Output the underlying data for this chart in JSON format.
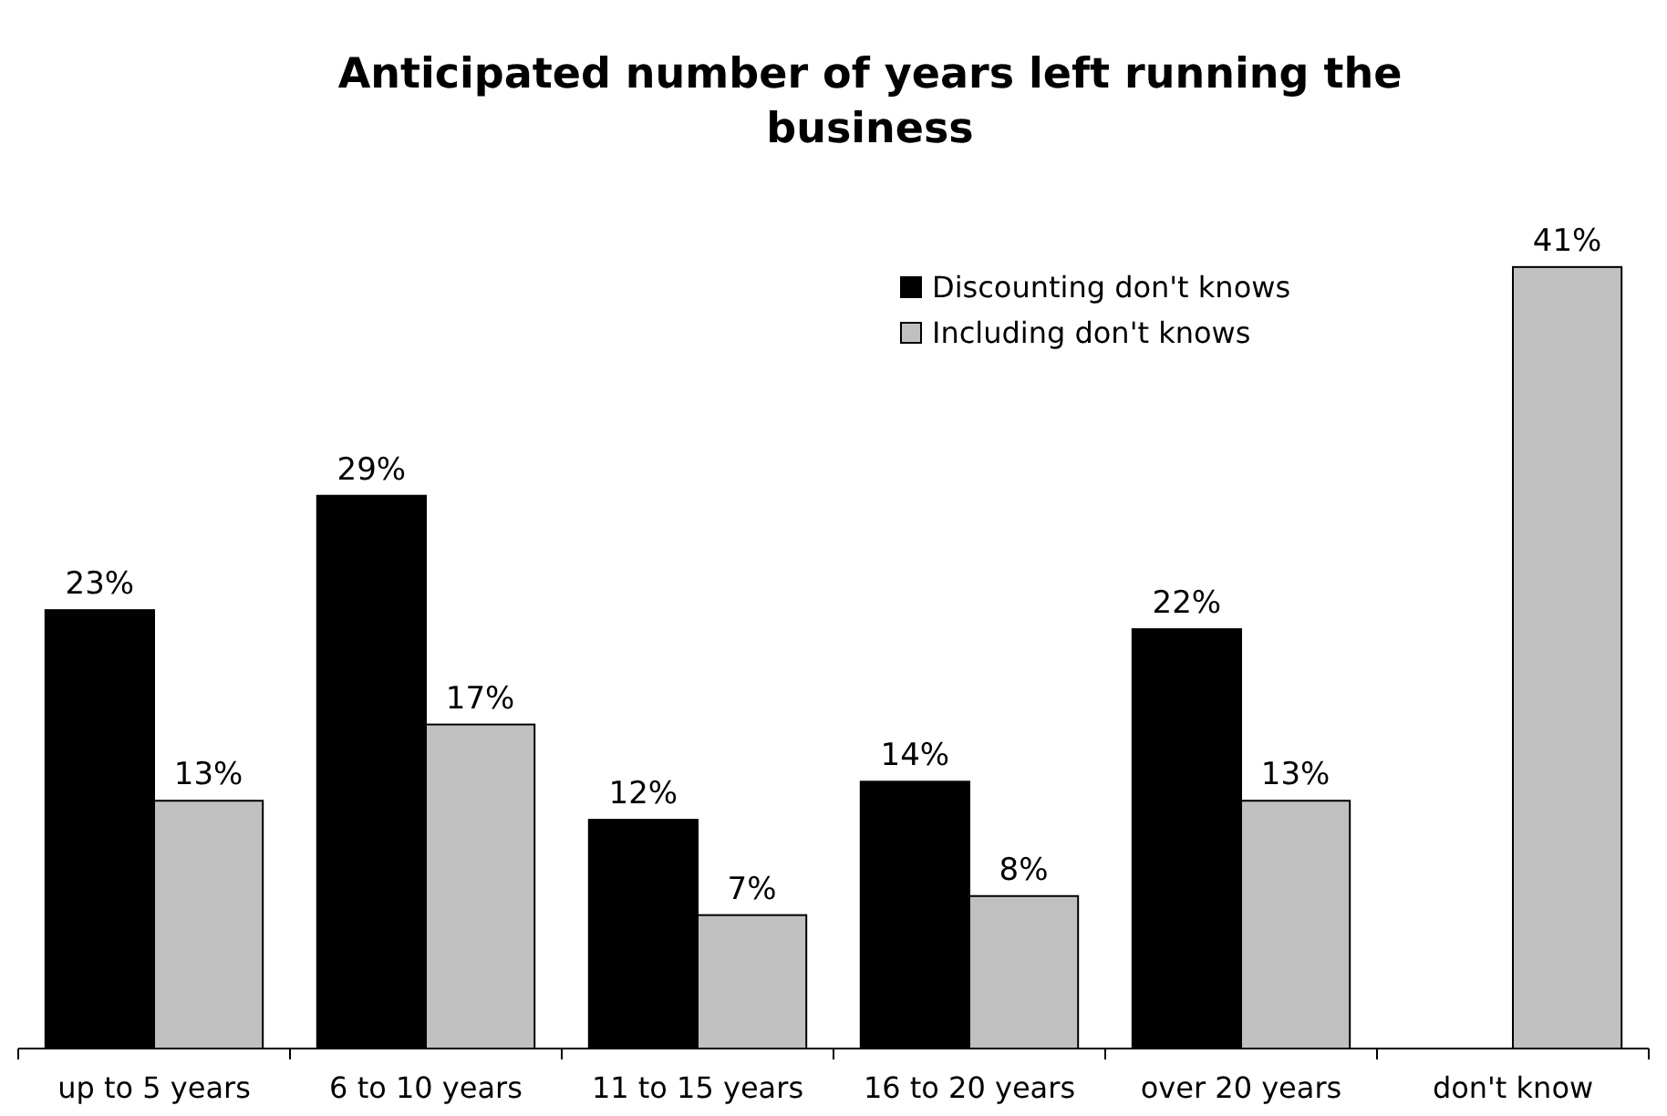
{
  "chart_data": {
    "type": "bar",
    "title": "Anticipated number of years left running the business",
    "categories": [
      "up to 5 years",
      "6 to 10 years",
      "11 to 15 years",
      "16 to 20 years",
      "over 20 years",
      "don't know"
    ],
    "series": [
      {
        "name": "Discounting don't knows",
        "color": "#000000",
        "values": [
          23,
          29,
          12,
          14,
          22,
          null
        ],
        "value_labels": [
          "23%",
          "29%",
          "12%",
          "14%",
          "22%",
          null
        ]
      },
      {
        "name": "Including don't knows",
        "color": "#c0c0c0",
        "values": [
          13,
          17,
          7,
          8,
          13,
          41
        ],
        "value_labels": [
          "13%",
          "17%",
          "7%",
          "8%",
          "13%",
          "41%"
        ]
      }
    ],
    "legend": "top right",
    "grid": false
  }
}
